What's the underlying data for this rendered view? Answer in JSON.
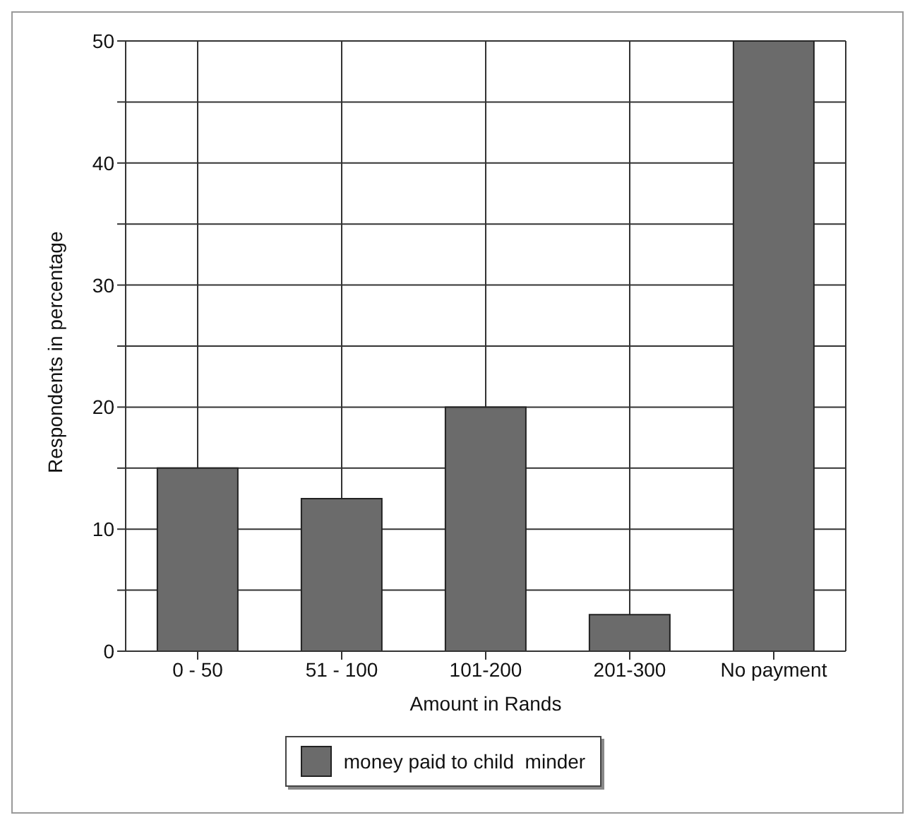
{
  "chart_data": {
    "type": "bar",
    "xlabel": "Amount in Rands",
    "ylabel": "Respondents in percentage",
    "categories": [
      "0 - 50",
      "51 - 100",
      "101-200",
      "201-300",
      "No payment"
    ],
    "series": [
      {
        "name": "money paid to child  minder",
        "color": "#6b6b6b",
        "values": [
          15,
          12.5,
          20,
          3,
          50
        ]
      }
    ],
    "ylim": [
      0,
      50
    ],
    "yticks": [
      0,
      {
        "value": 5,
        "label": null
      },
      10,
      {
        "value": 15,
        "label": null
      },
      20,
      {
        "value": 25,
        "label": null
      },
      30,
      {
        "value": 35,
        "label": null
      },
      40,
      {
        "value": 45,
        "label": null
      },
      50
    ],
    "grid": true,
    "legend": "bottom"
  }
}
